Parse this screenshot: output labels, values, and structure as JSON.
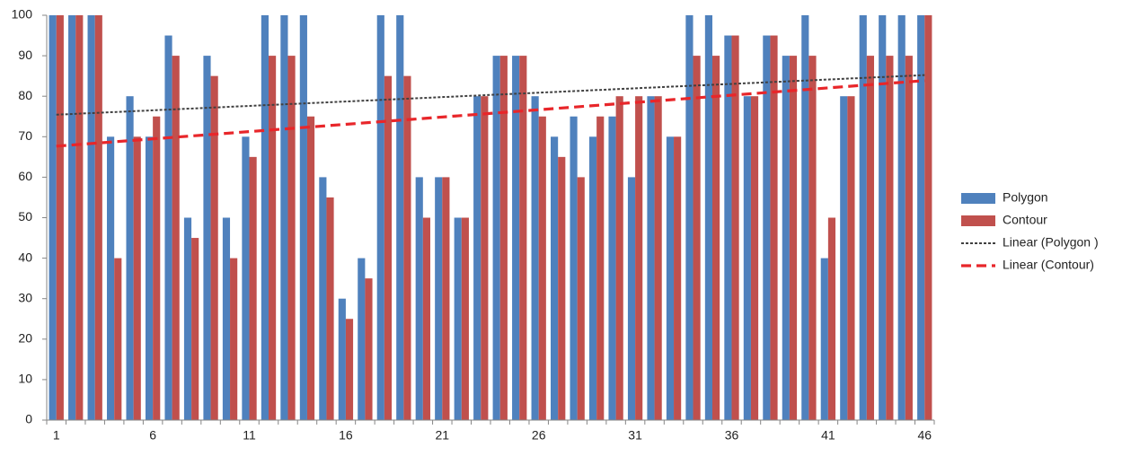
{
  "chart_data": {
    "type": "bar",
    "categories": [
      "1",
      null,
      null,
      null,
      null,
      "6",
      null,
      null,
      null,
      null,
      "11",
      null,
      null,
      null,
      null,
      "16",
      null,
      null,
      null,
      null,
      "21",
      null,
      null,
      null,
      null,
      "26",
      null,
      null,
      null,
      null,
      "31",
      null,
      null,
      null,
      null,
      "36",
      null,
      null,
      null,
      null,
      "41",
      null,
      null,
      null,
      null,
      "46"
    ],
    "series": [
      {
        "name": "Polygon",
        "color": "#4f81bd",
        "values": [
          100,
          100,
          100,
          70,
          80,
          70,
          95,
          50,
          90,
          50,
          70,
          100,
          100,
          100,
          60,
          30,
          40,
          100,
          100,
          60,
          60,
          50,
          80,
          90,
          90,
          80,
          70,
          75,
          70,
          75,
          60,
          80,
          70,
          100,
          100,
          95,
          80,
          95,
          90,
          100,
          40,
          80,
          100,
          100,
          100,
          100
        ]
      },
      {
        "name": "Contour",
        "color": "#c0504d",
        "values": [
          100,
          100,
          100,
          40,
          70,
          75,
          90,
          45,
          85,
          40,
          65,
          90,
          90,
          75,
          55,
          25,
          35,
          85,
          85,
          50,
          60,
          50,
          80,
          90,
          90,
          75,
          65,
          60,
          75,
          80,
          80,
          80,
          70,
          90,
          90,
          95,
          80,
          95,
          90,
          90,
          50,
          80,
          90,
          90,
          90,
          100
        ]
      }
    ],
    "trendlines": [
      {
        "name": "Linear (Polygon )",
        "color": "#404040",
        "dash": "dotted"
      },
      {
        "name": "Linear (Contour)",
        "color": "#e8262a",
        "dash": "dashed"
      }
    ],
    "ylim": [
      0,
      100
    ],
    "yticks": [
      0,
      10,
      20,
      30,
      40,
      50,
      60,
      70,
      80,
      90,
      100
    ],
    "grid": false,
    "legend": "right"
  }
}
